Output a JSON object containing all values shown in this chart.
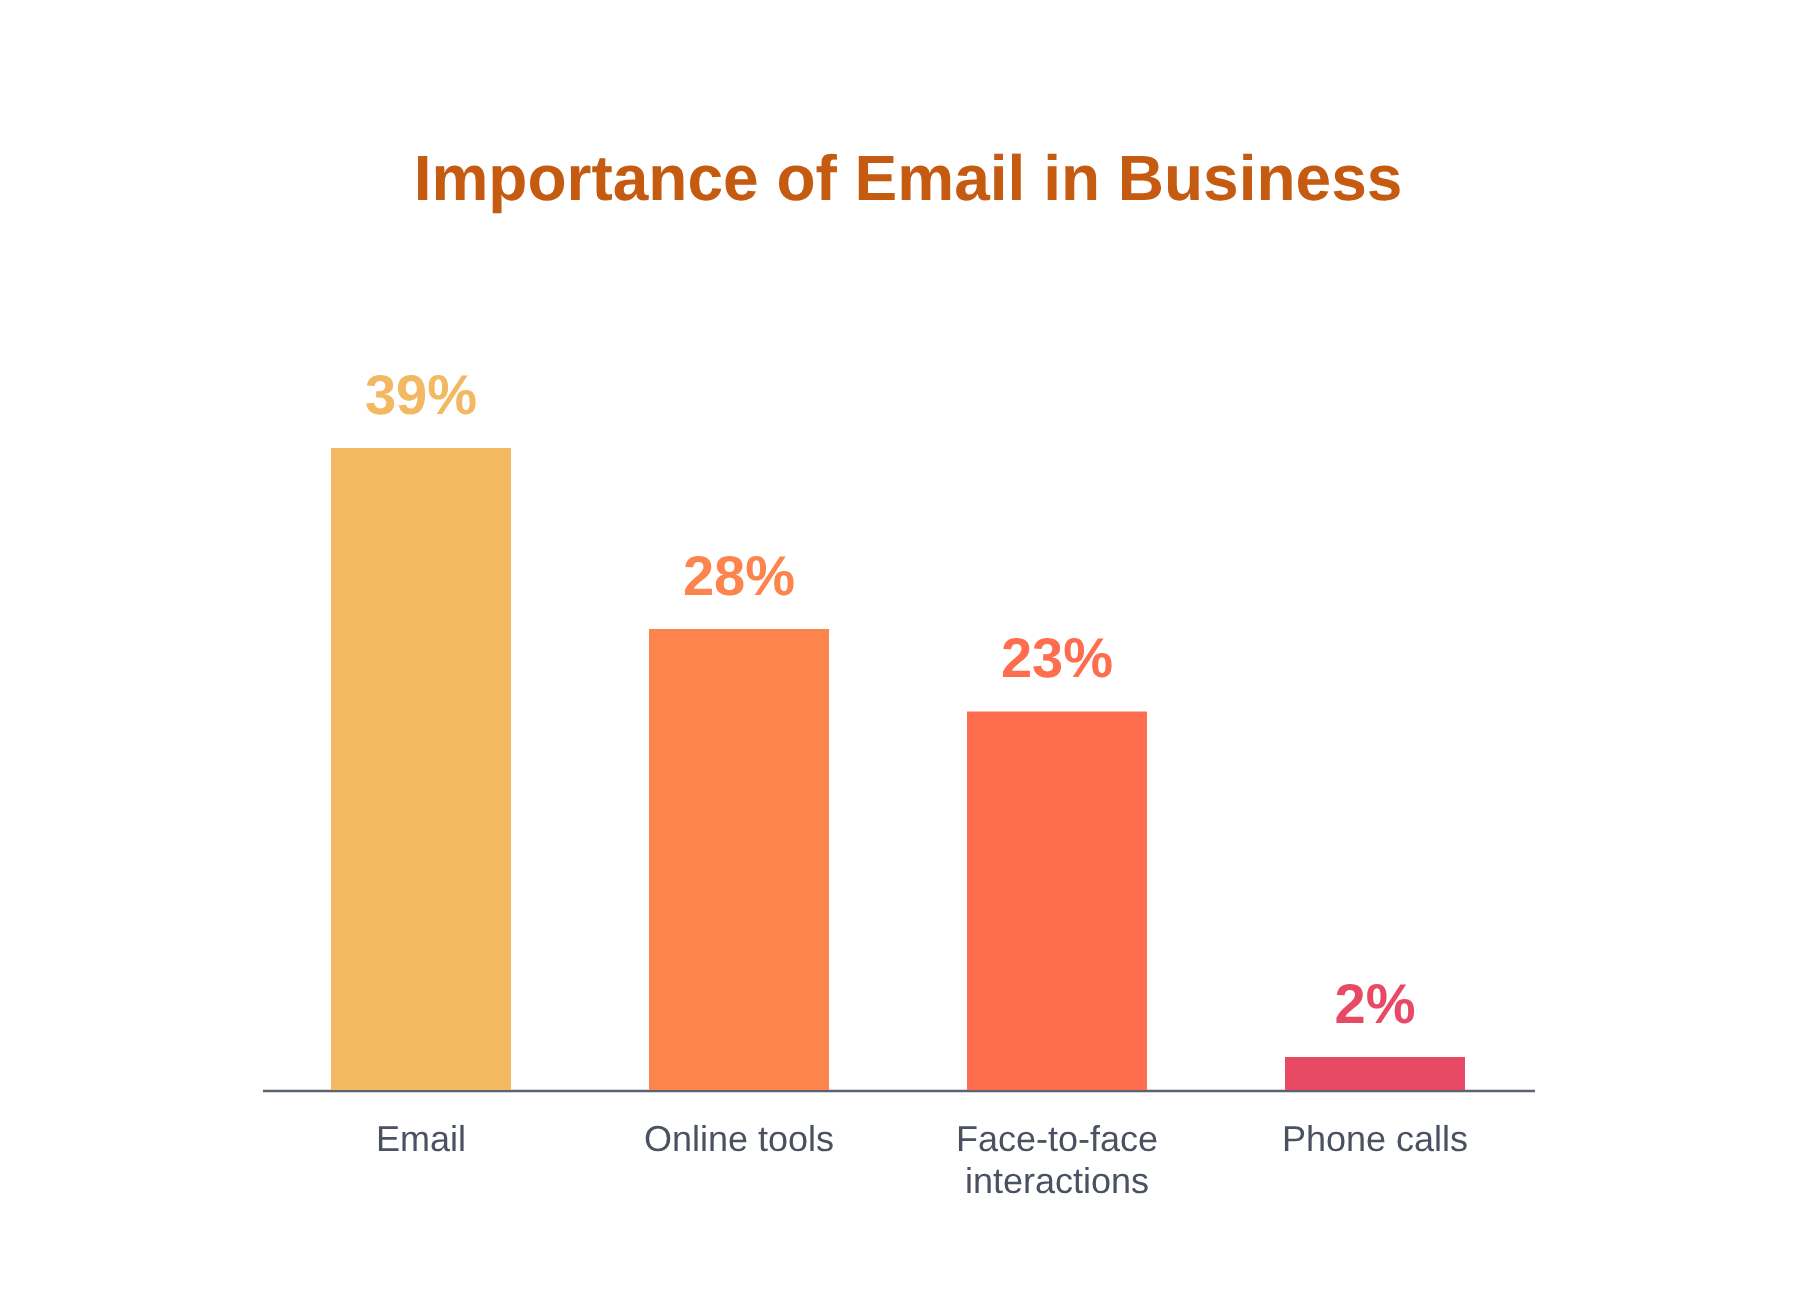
{
  "chart_data": {
    "type": "bar",
    "title": "Importance of Email in Business",
    "categories": [
      "Email",
      "Online tools",
      "Face-to-face interactions",
      "Phone calls"
    ],
    "values": [
      39,
      28,
      23,
      2
    ],
    "colors": [
      "#f2b862",
      "#fd844d",
      "#fe6d4e",
      "#e84a66"
    ],
    "value_labels": [
      "39%",
      "28%",
      "23%",
      "2%"
    ]
  }
}
